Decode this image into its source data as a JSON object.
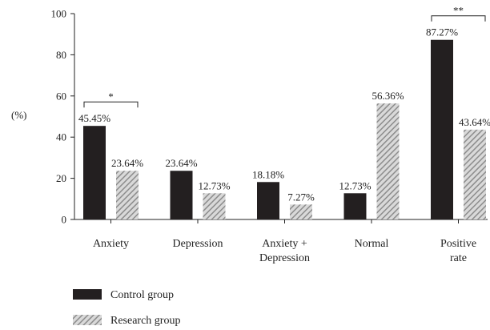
{
  "chart_data": {
    "type": "bar",
    "title": "",
    "xlabel": "",
    "ylabel": "(%)",
    "ylim": [
      0,
      100
    ],
    "yticks": [
      0,
      20,
      40,
      60,
      80,
      100
    ],
    "categories": [
      [
        "Anxiety"
      ],
      [
        "Depression"
      ],
      [
        "Anxiety +",
        "Depression"
      ],
      [
        "Normal"
      ],
      [
        "Positive",
        "rate"
      ]
    ],
    "series": [
      {
        "name": "Control group",
        "color": "#231f20",
        "pattern": "solid",
        "values": [
          45.45,
          23.64,
          18.18,
          12.73,
          87.27
        ],
        "labels": [
          "45.45%",
          "23.64%",
          "18.18%",
          "12.73%",
          "87.27%"
        ]
      },
      {
        "name": "Research group",
        "color": "#9a9a9a",
        "pattern": "diagonal-hatch",
        "values": [
          23.64,
          12.73,
          7.27,
          56.36,
          43.64
        ],
        "labels": [
          "23.64%",
          "12.73%",
          "7.27%",
          "56.36%",
          "43.64%"
        ]
      }
    ],
    "annotations": [
      {
        "category_index": 0,
        "text": "*"
      },
      {
        "category_index": 4,
        "text": "**"
      }
    ],
    "legend": {
      "position": "bottom-left"
    },
    "grid": false
  }
}
